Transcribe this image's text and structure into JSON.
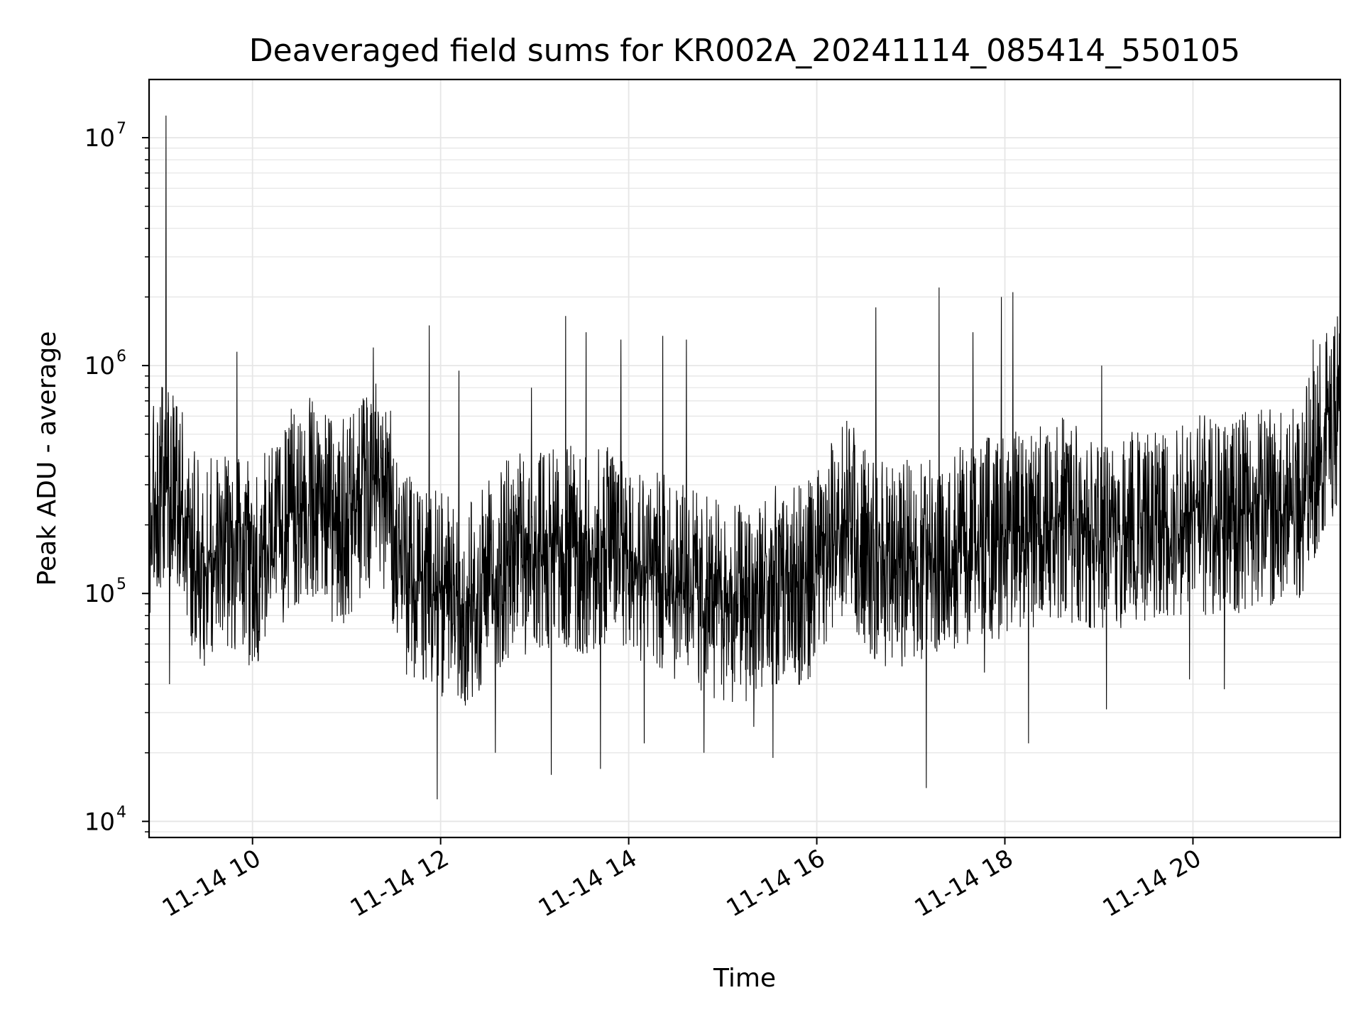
{
  "chart_data": {
    "type": "line",
    "title": "Deaveraged field sums for KR002A_20241114_085414_550105",
    "xlabel": "Time",
    "ylabel": "Peak ADU - average",
    "y_scale": "log",
    "ylim": [
      8500,
      18000000
    ],
    "xlim": [
      "2024-11-14 08:54",
      "2024-11-14 21:34"
    ],
    "x_ticks": [
      {
        "x": "2024-11-14 10:00",
        "label": "11-14 10"
      },
      {
        "x": "2024-11-14 12:00",
        "label": "11-14 12"
      },
      {
        "x": "2024-11-14 14:00",
        "label": "11-14 14"
      },
      {
        "x": "2024-11-14 16:00",
        "label": "11-14 16"
      },
      {
        "x": "2024-11-14 18:00",
        "label": "11-14 18"
      },
      {
        "x": "2024-11-14 20:00",
        "label": "11-14 20"
      }
    ],
    "y_ticks": [
      {
        "value": 10000,
        "base": "10",
        "exp": "4"
      },
      {
        "value": 100000,
        "base": "10",
        "exp": "5"
      },
      {
        "value": 1000000,
        "base": "10",
        "exp": "6"
      },
      {
        "value": 10000000,
        "base": "10",
        "exp": "7"
      }
    ],
    "grid": true,
    "line_color": "#000000",
    "grid_color": "#e6e6e6",
    "series": [
      {
        "x": [
          "2024-11-14 08:54",
          "2024-11-14 08:58",
          "2024-11-14 09:02",
          "2024-11-14 09:05",
          "2024-11-14 09:08",
          "2024-11-14 09:10",
          "2024-11-14 09:14",
          "2024-11-14 09:20",
          "2024-11-14 09:25",
          "2024-11-14 09:30",
          "2024-11-14 09:36",
          "2024-11-14 09:42",
          "2024-11-14 09:48",
          "2024-11-14 09:55",
          "2024-11-14 10:00",
          "2024-11-14 10:07",
          "2024-11-14 10:15",
          "2024-11-14 10:22",
          "2024-11-14 10:30",
          "2024-11-14 10:38",
          "2024-11-14 10:45",
          "2024-11-14 10:52",
          "2024-11-14 11:00",
          "2024-11-14 11:08",
          "2024-11-14 11:15",
          "2024-11-14 11:22",
          "2024-11-14 11:30",
          "2024-11-14 11:38",
          "2024-11-14 11:45",
          "2024-11-14 11:52",
          "2024-11-14 12:00",
          "2024-11-14 12:08",
          "2024-11-14 12:15",
          "2024-11-14 12:22",
          "2024-11-14 12:30",
          "2024-11-14 12:38",
          "2024-11-14 12:45",
          "2024-11-14 12:52",
          "2024-11-14 13:00",
          "2024-11-14 13:08",
          "2024-11-14 13:15",
          "2024-11-14 13:22",
          "2024-11-14 13:30",
          "2024-11-14 13:38",
          "2024-11-14 13:45",
          "2024-11-14 13:52",
          "2024-11-14 14:00",
          "2024-11-14 14:08",
          "2024-11-14 14:15",
          "2024-11-14 14:22",
          "2024-11-14 14:30",
          "2024-11-14 14:38",
          "2024-11-14 14:45",
          "2024-11-14 14:52",
          "2024-11-14 15:00",
          "2024-11-14 15:08",
          "2024-11-14 15:15",
          "2024-11-14 15:22",
          "2024-11-14 15:30",
          "2024-11-14 15:38",
          "2024-11-14 15:45",
          "2024-11-14 15:52",
          "2024-11-14 16:00",
          "2024-11-14 16:08",
          "2024-11-14 16:15",
          "2024-11-14 16:22",
          "2024-11-14 16:30",
          "2024-11-14 16:38",
          "2024-11-14 16:45",
          "2024-11-14 16:52",
          "2024-11-14 17:00",
          "2024-11-14 17:08",
          "2024-11-14 17:15",
          "2024-11-14 17:22",
          "2024-11-14 17:30",
          "2024-11-14 17:38",
          "2024-11-14 17:45",
          "2024-11-14 17:52",
          "2024-11-14 18:00",
          "2024-11-14 18:08",
          "2024-11-14 18:15",
          "2024-11-14 18:22",
          "2024-11-14 18:30",
          "2024-11-14 18:38",
          "2024-11-14 18:45",
          "2024-11-14 18:52",
          "2024-11-14 19:00",
          "2024-11-14 19:08",
          "2024-11-14 19:15",
          "2024-11-14 19:22",
          "2024-11-14 19:30",
          "2024-11-14 19:38",
          "2024-11-14 19:45",
          "2024-11-14 19:52",
          "2024-11-14 20:00",
          "2024-11-14 20:08",
          "2024-11-14 20:15",
          "2024-11-14 20:22",
          "2024-11-14 20:30",
          "2024-11-14 20:38",
          "2024-11-14 20:45",
          "2024-11-14 20:52",
          "2024-11-14 21:00",
          "2024-11-14 21:08",
          "2024-11-14 21:15",
          "2024-11-14 21:20",
          "2024-11-14 21:25",
          "2024-11-14 21:30",
          "2024-11-14 21:34"
        ],
        "baseline": [
          220000,
          260000,
          300000,
          320000,
          330000,
          300000,
          250000,
          170000,
          140000,
          130000,
          150000,
          160000,
          150000,
          140000,
          130000,
          150000,
          180000,
          220000,
          250000,
          260000,
          250000,
          200000,
          210000,
          250000,
          300000,
          330000,
          200000,
          120000,
          110000,
          105000,
          100000,
          95000,
          90000,
          95000,
          110000,
          130000,
          145000,
          150000,
          150000,
          155000,
          165000,
          160000,
          150000,
          150000,
          160000,
          170000,
          160000,
          140000,
          130000,
          120000,
          115000,
          110000,
          100000,
          95000,
          90000,
          92000,
          95000,
          100000,
          105000,
          110000,
          105000,
          110000,
          120000,
          160000,
          200000,
          220000,
          160000,
          140000,
          130000,
          130000,
          140000,
          145000,
          150000,
          155000,
          160000,
          165000,
          170000,
          175000,
          180000,
          185000,
          190000,
          200000,
          210000,
          220000,
          200000,
          180000,
          175000,
          180000,
          190000,
          200000,
          210000,
          215000,
          220000,
          225000,
          230000,
          225000,
          215000,
          210000,
          220000,
          230000,
          235000,
          240000,
          245000,
          250000,
          330000,
          450000,
          550000,
          600000,
          650000
        ],
        "spikes": [
          {
            "x": "2024-11-14 09:05",
            "high": 12500000
          },
          {
            "x": "2024-11-14 09:07",
            "low": 40000
          },
          {
            "x": "2024-11-14 09:50",
            "high": 1150000
          },
          {
            "x": "2024-11-14 11:17",
            "high": 1200000
          },
          {
            "x": "2024-11-14 11:53",
            "high": 1500000
          },
          {
            "x": "2024-11-14 11:58",
            "low": 12500
          },
          {
            "x": "2024-11-14 12:12",
            "high": 950000
          },
          {
            "x": "2024-11-14 12:35",
            "low": 20000
          },
          {
            "x": "2024-11-14 12:58",
            "high": 800000
          },
          {
            "x": "2024-11-14 13:11",
            "low": 16000
          },
          {
            "x": "2024-11-14 13:20",
            "high": 1650000
          },
          {
            "x": "2024-11-14 13:33",
            "high": 1400000
          },
          {
            "x": "2024-11-14 13:42",
            "low": 17000
          },
          {
            "x": "2024-11-14 13:55",
            "high": 1300000
          },
          {
            "x": "2024-11-14 14:10",
            "low": 22000
          },
          {
            "x": "2024-11-14 14:22",
            "high": 1350000
          },
          {
            "x": "2024-11-14 14:37",
            "high": 1300000
          },
          {
            "x": "2024-11-14 14:48",
            "low": 20000
          },
          {
            "x": "2024-11-14 15:20",
            "low": 26000
          },
          {
            "x": "2024-11-14 15:32",
            "low": 19000
          },
          {
            "x": "2024-11-14 16:38",
            "high": 1800000
          },
          {
            "x": "2024-11-14 17:10",
            "low": 14000
          },
          {
            "x": "2024-11-14 17:18",
            "high": 2200000
          },
          {
            "x": "2024-11-14 17:40",
            "high": 1400000
          },
          {
            "x": "2024-11-14 17:47",
            "low": 45000
          },
          {
            "x": "2024-11-14 17:58",
            "high": 2000000
          },
          {
            "x": "2024-11-14 18:05",
            "high": 2100000
          },
          {
            "x": "2024-11-14 18:15",
            "low": 22000
          },
          {
            "x": "2024-11-14 19:02",
            "high": 1000000
          },
          {
            "x": "2024-11-14 19:05",
            "low": 31000
          },
          {
            "x": "2024-11-14 19:58",
            "low": 42000
          },
          {
            "x": "2024-11-14 20:20",
            "low": 38000
          },
          {
            "x": "2024-11-14 21:17",
            "high": 1300000
          },
          {
            "x": "2024-11-14 21:34",
            "high": 3100000
          }
        ]
      }
    ]
  }
}
